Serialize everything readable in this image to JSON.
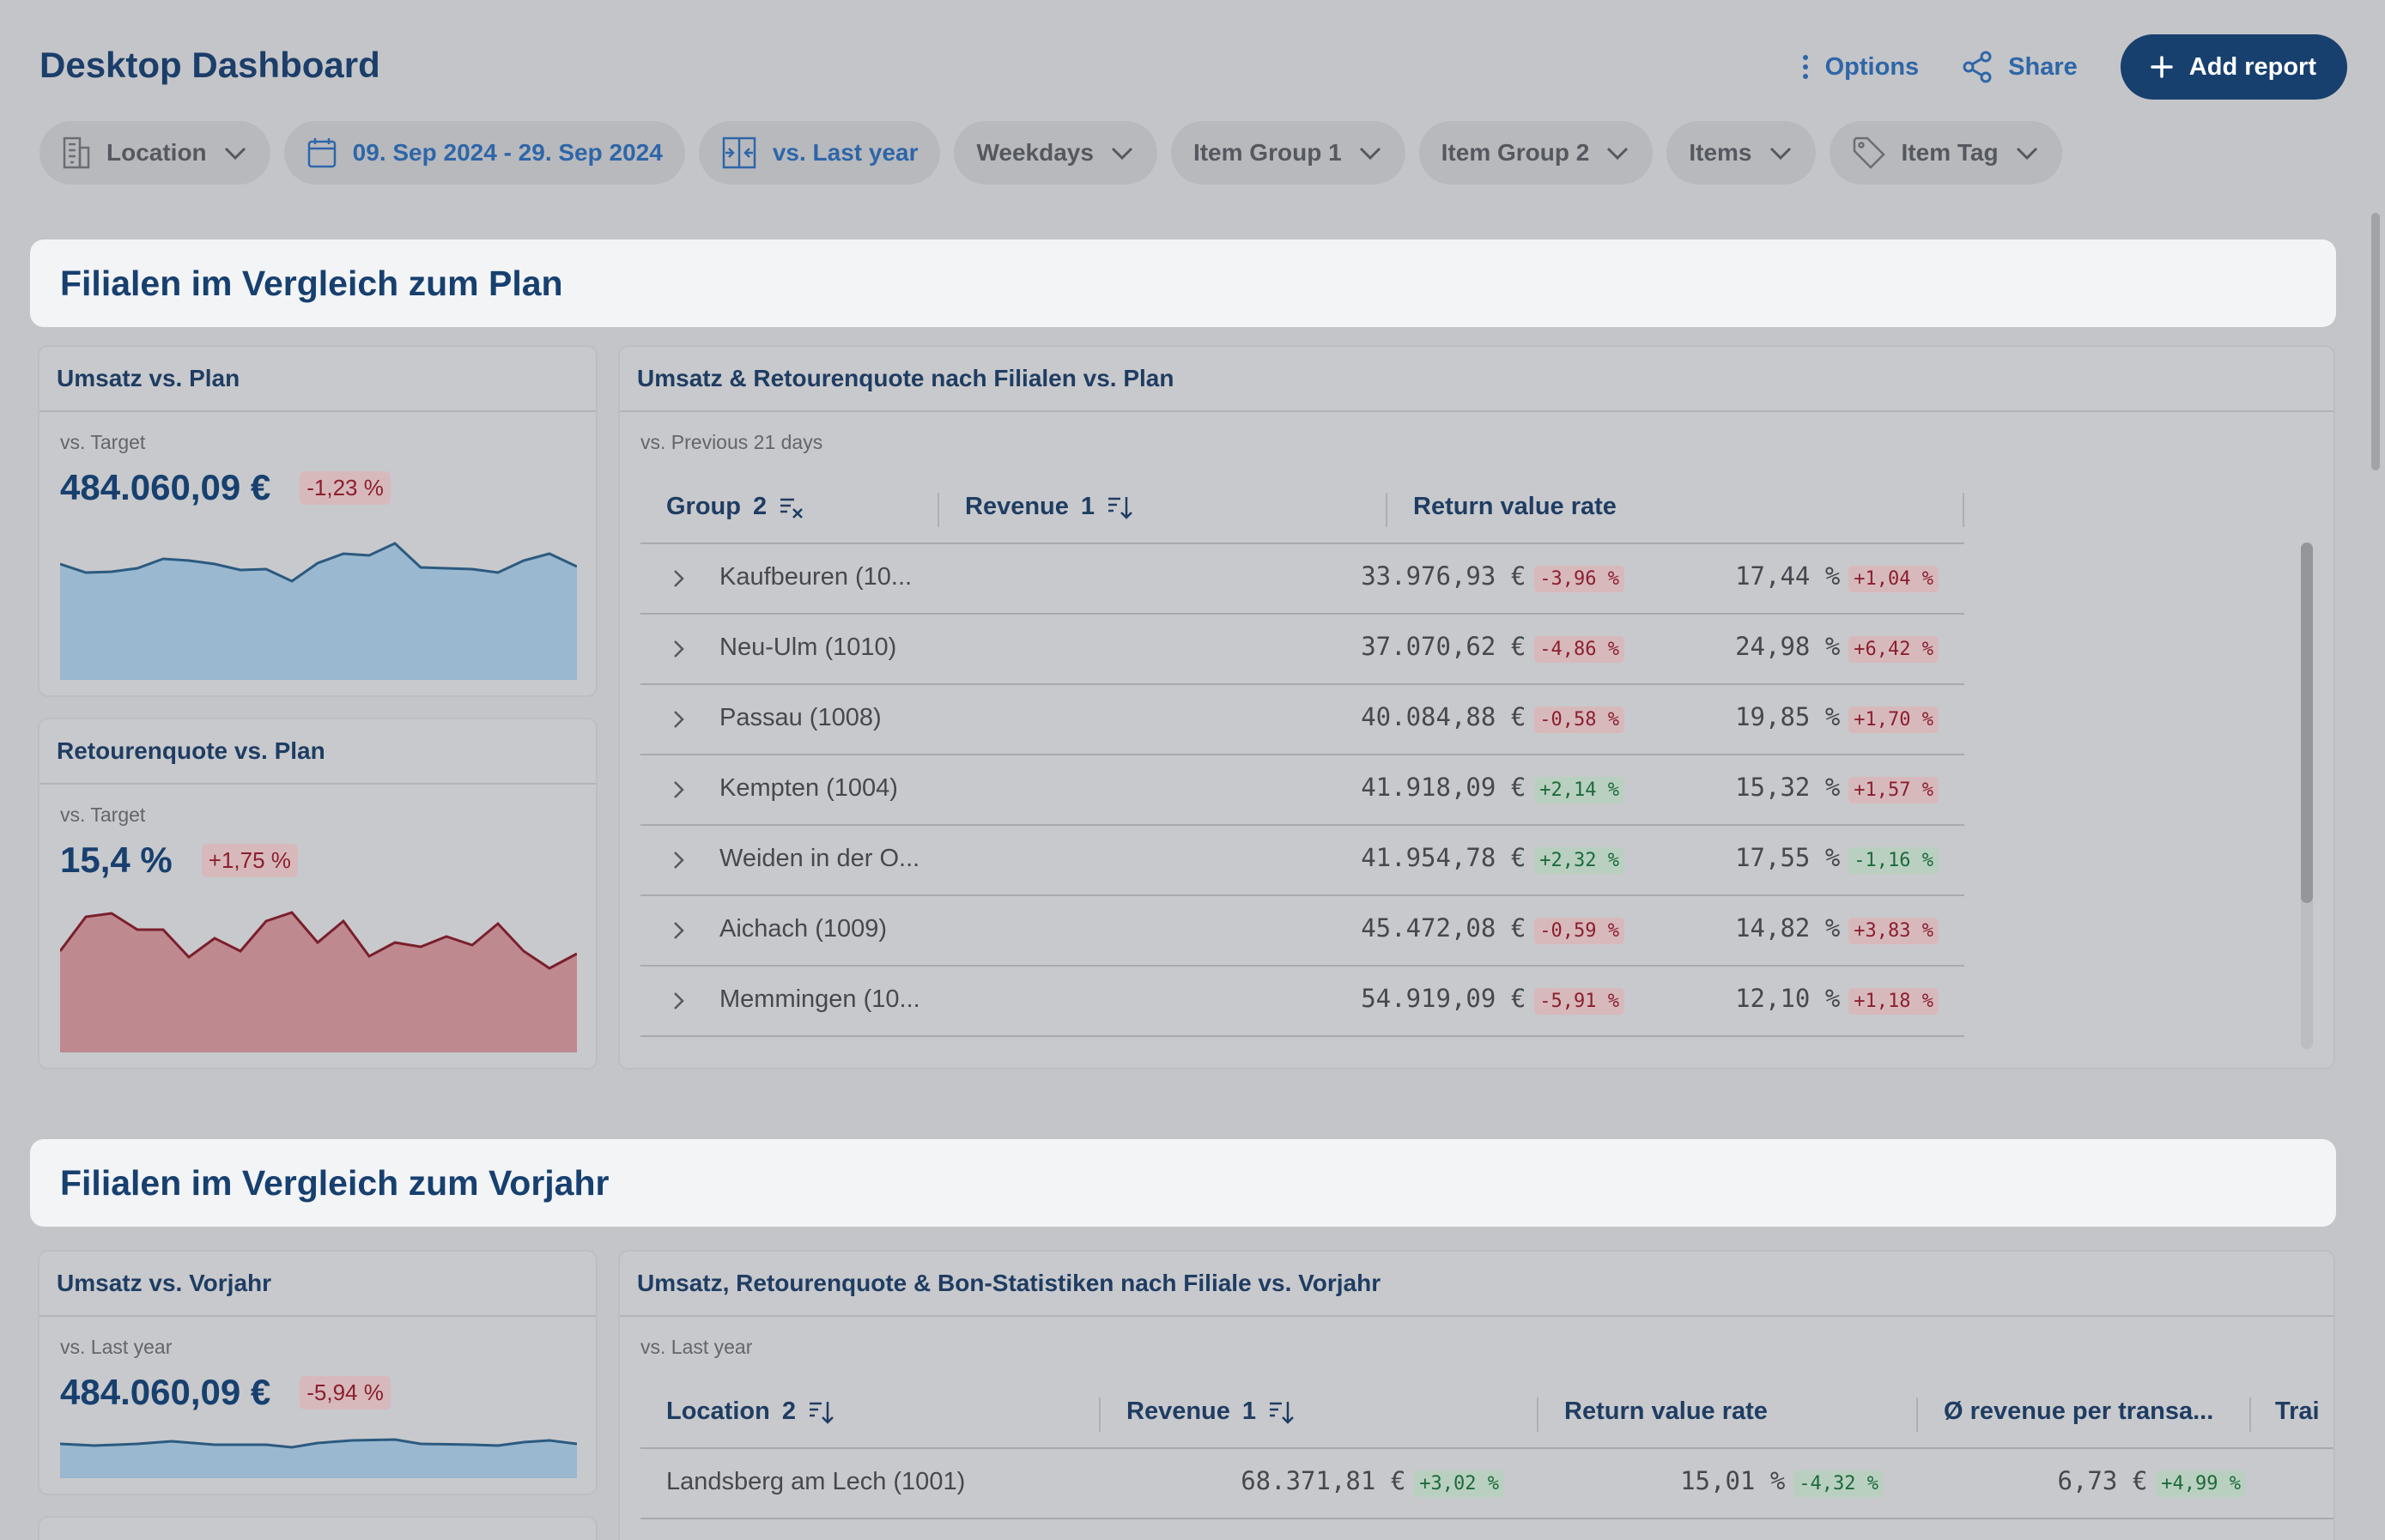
{
  "header": {
    "title": "Desktop Dashboard",
    "options_label": "Options",
    "share_label": "Share",
    "add_report_label": "Add report"
  },
  "filters": [
    {
      "label": "Location",
      "icon": "building-icon",
      "active": false
    },
    {
      "label": "09. Sep 2024 - 29. Sep 2024",
      "icon": "calendar-icon",
      "active": true
    },
    {
      "label": "vs. Last year",
      "icon": "compare-icon",
      "active": true
    },
    {
      "label": "Weekdays",
      "active": false
    },
    {
      "label": "Item Group 1",
      "active": false
    },
    {
      "label": "Item Group 2",
      "active": false
    },
    {
      "label": "Items",
      "active": false
    },
    {
      "label": "Item Tag",
      "icon": "tag-icon",
      "active": false
    }
  ],
  "section1": {
    "title": "Filialen im Vergleich zum Plan",
    "umsatz_card": {
      "title": "Umsatz vs. Plan",
      "subtitle": "vs. Target",
      "value": "484.060,09 €",
      "delta": "-1,23 %"
    },
    "retouren_card": {
      "title": "Retourenquote vs. Plan",
      "subtitle": "vs. Target",
      "value": "15,4 %",
      "delta": "+1,75 %"
    },
    "table_card": {
      "title": "Umsatz & Retourenquote nach Filialen vs. Plan",
      "subtitle": "vs. Previous 21 days",
      "columns": [
        "Group",
        "Revenue",
        "Return value rate"
      ],
      "group_sort_index": "2",
      "revenue_sort_index": "1",
      "rows": [
        {
          "name": "Kaufbeuren (10...",
          "revenue": "33.976,93 €",
          "revenue_delta": "-3,96 %",
          "revenue_pos": false,
          "rate": "17,44 %",
          "rate_delta": "+1,04 %",
          "rate_pos": false
        },
        {
          "name": "Neu-Ulm (1010)",
          "revenue": "37.070,62 €",
          "revenue_delta": "-4,86 %",
          "revenue_pos": false,
          "rate": "24,98 %",
          "rate_delta": "+6,42 %",
          "rate_pos": false
        },
        {
          "name": "Passau (1008)",
          "revenue": "40.084,88 €",
          "revenue_delta": "-0,58 %",
          "revenue_pos": false,
          "rate": "19,85 %",
          "rate_delta": "+1,70 %",
          "rate_pos": false
        },
        {
          "name": "Kempten (1004)",
          "revenue": "41.918,09 €",
          "revenue_delta": "+2,14 %",
          "revenue_pos": true,
          "rate": "15,32 %",
          "rate_delta": "+1,57 %",
          "rate_pos": false
        },
        {
          "name": "Weiden in der O...",
          "revenue": "41.954,78 €",
          "revenue_delta": "+2,32 %",
          "revenue_pos": true,
          "rate": "17,55 %",
          "rate_delta": "-1,16 %",
          "rate_pos": true
        },
        {
          "name": "Aichach (1009)",
          "revenue": "45.472,08 €",
          "revenue_delta": "-0,59 %",
          "revenue_pos": false,
          "rate": "14,82 %",
          "rate_delta": "+3,83 %",
          "rate_pos": false
        },
        {
          "name": "Memmingen (10...",
          "revenue": "54.919,09 €",
          "revenue_delta": "-5,91 %",
          "revenue_pos": false,
          "rate": "12,10 %",
          "rate_delta": "+1,18 %",
          "rate_pos": false
        }
      ]
    }
  },
  "section2": {
    "title": "Filialen im Vergleich zum Vorjahr",
    "umsatz_card": {
      "title": "Umsatz vs. Vorjahr",
      "subtitle": "vs. Last year",
      "value": "484.060,09 €",
      "delta": "-5,94 %"
    },
    "table_card": {
      "title": "Umsatz, Retourenquote & Bon-Statistiken nach Filiale vs. Vorjahr",
      "subtitle": "vs. Last year",
      "columns": [
        "Location",
        "Revenue",
        "Return value rate",
        "Ø revenue per transa...",
        "Trai"
      ],
      "location_sort_index": "2",
      "revenue_sort_index": "1",
      "rows": [
        {
          "name": "Landsberg am Lech (1001)",
          "revenue": "68.371,81 €",
          "revenue_delta": "+3,02 %",
          "rate": "15,01 %",
          "rate_delta": "-4,32 %",
          "avg": "6,73 €",
          "avg_delta": "+4,99 %"
        }
      ]
    }
  },
  "colors": {
    "primary": "#17406f",
    "accent": "#2e66a8",
    "negative": "#8b1f2e",
    "positive": "#1d6a3a",
    "revenue_area": "#9ab8cf",
    "return_area": "#bf8990"
  }
}
